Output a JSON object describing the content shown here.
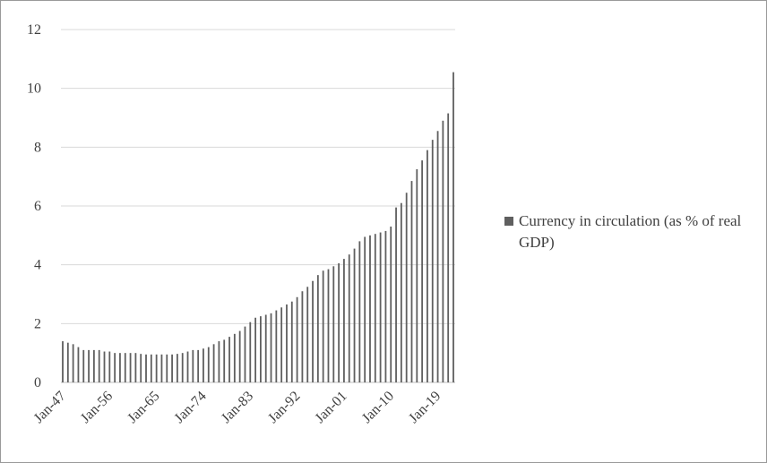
{
  "chart_data": {
    "type": "bar",
    "title": "",
    "xlabel": "",
    "ylabel": "",
    "ylim": [
      0,
      12
    ],
    "yticks": [
      "0",
      "2",
      "4",
      "6",
      "8",
      "10",
      "12"
    ],
    "grid": true,
    "legend_position": "right",
    "x_tick_labels": [
      "Jan-47",
      "Jan-56",
      "Jan-65",
      "Jan-74",
      "Jan-83",
      "Jan-92",
      "Jan-01",
      "Jan-10",
      "Jan-19"
    ],
    "x_start_year": 1947,
    "x_end_year": 2020,
    "series": [
      {
        "name": "Currency in circulation (as % of real GDP)",
        "color": "#5f5f5f",
        "values": [
          1.4,
          1.35,
          1.3,
          1.2,
          1.1,
          1.1,
          1.1,
          1.1,
          1.05,
          1.05,
          1.0,
          1.0,
          1.0,
          1.0,
          1.0,
          0.97,
          0.95,
          0.95,
          0.95,
          0.95,
          0.95,
          0.95,
          0.97,
          1.0,
          1.05,
          1.1,
          1.1,
          1.15,
          1.2,
          1.3,
          1.4,
          1.45,
          1.55,
          1.65,
          1.75,
          1.9,
          2.05,
          2.2,
          2.25,
          2.3,
          2.35,
          2.45,
          2.55,
          2.65,
          2.75,
          2.9,
          3.1,
          3.25,
          3.45,
          3.65,
          3.8,
          3.85,
          3.95,
          4.05,
          4.2,
          4.35,
          4.55,
          4.8,
          4.95,
          5.0,
          5.05,
          5.1,
          5.15,
          5.3,
          5.95,
          6.1,
          6.45,
          6.85,
          7.25,
          7.55,
          7.9,
          8.25,
          8.55,
          8.9,
          9.15,
          10.55
        ]
      }
    ]
  }
}
